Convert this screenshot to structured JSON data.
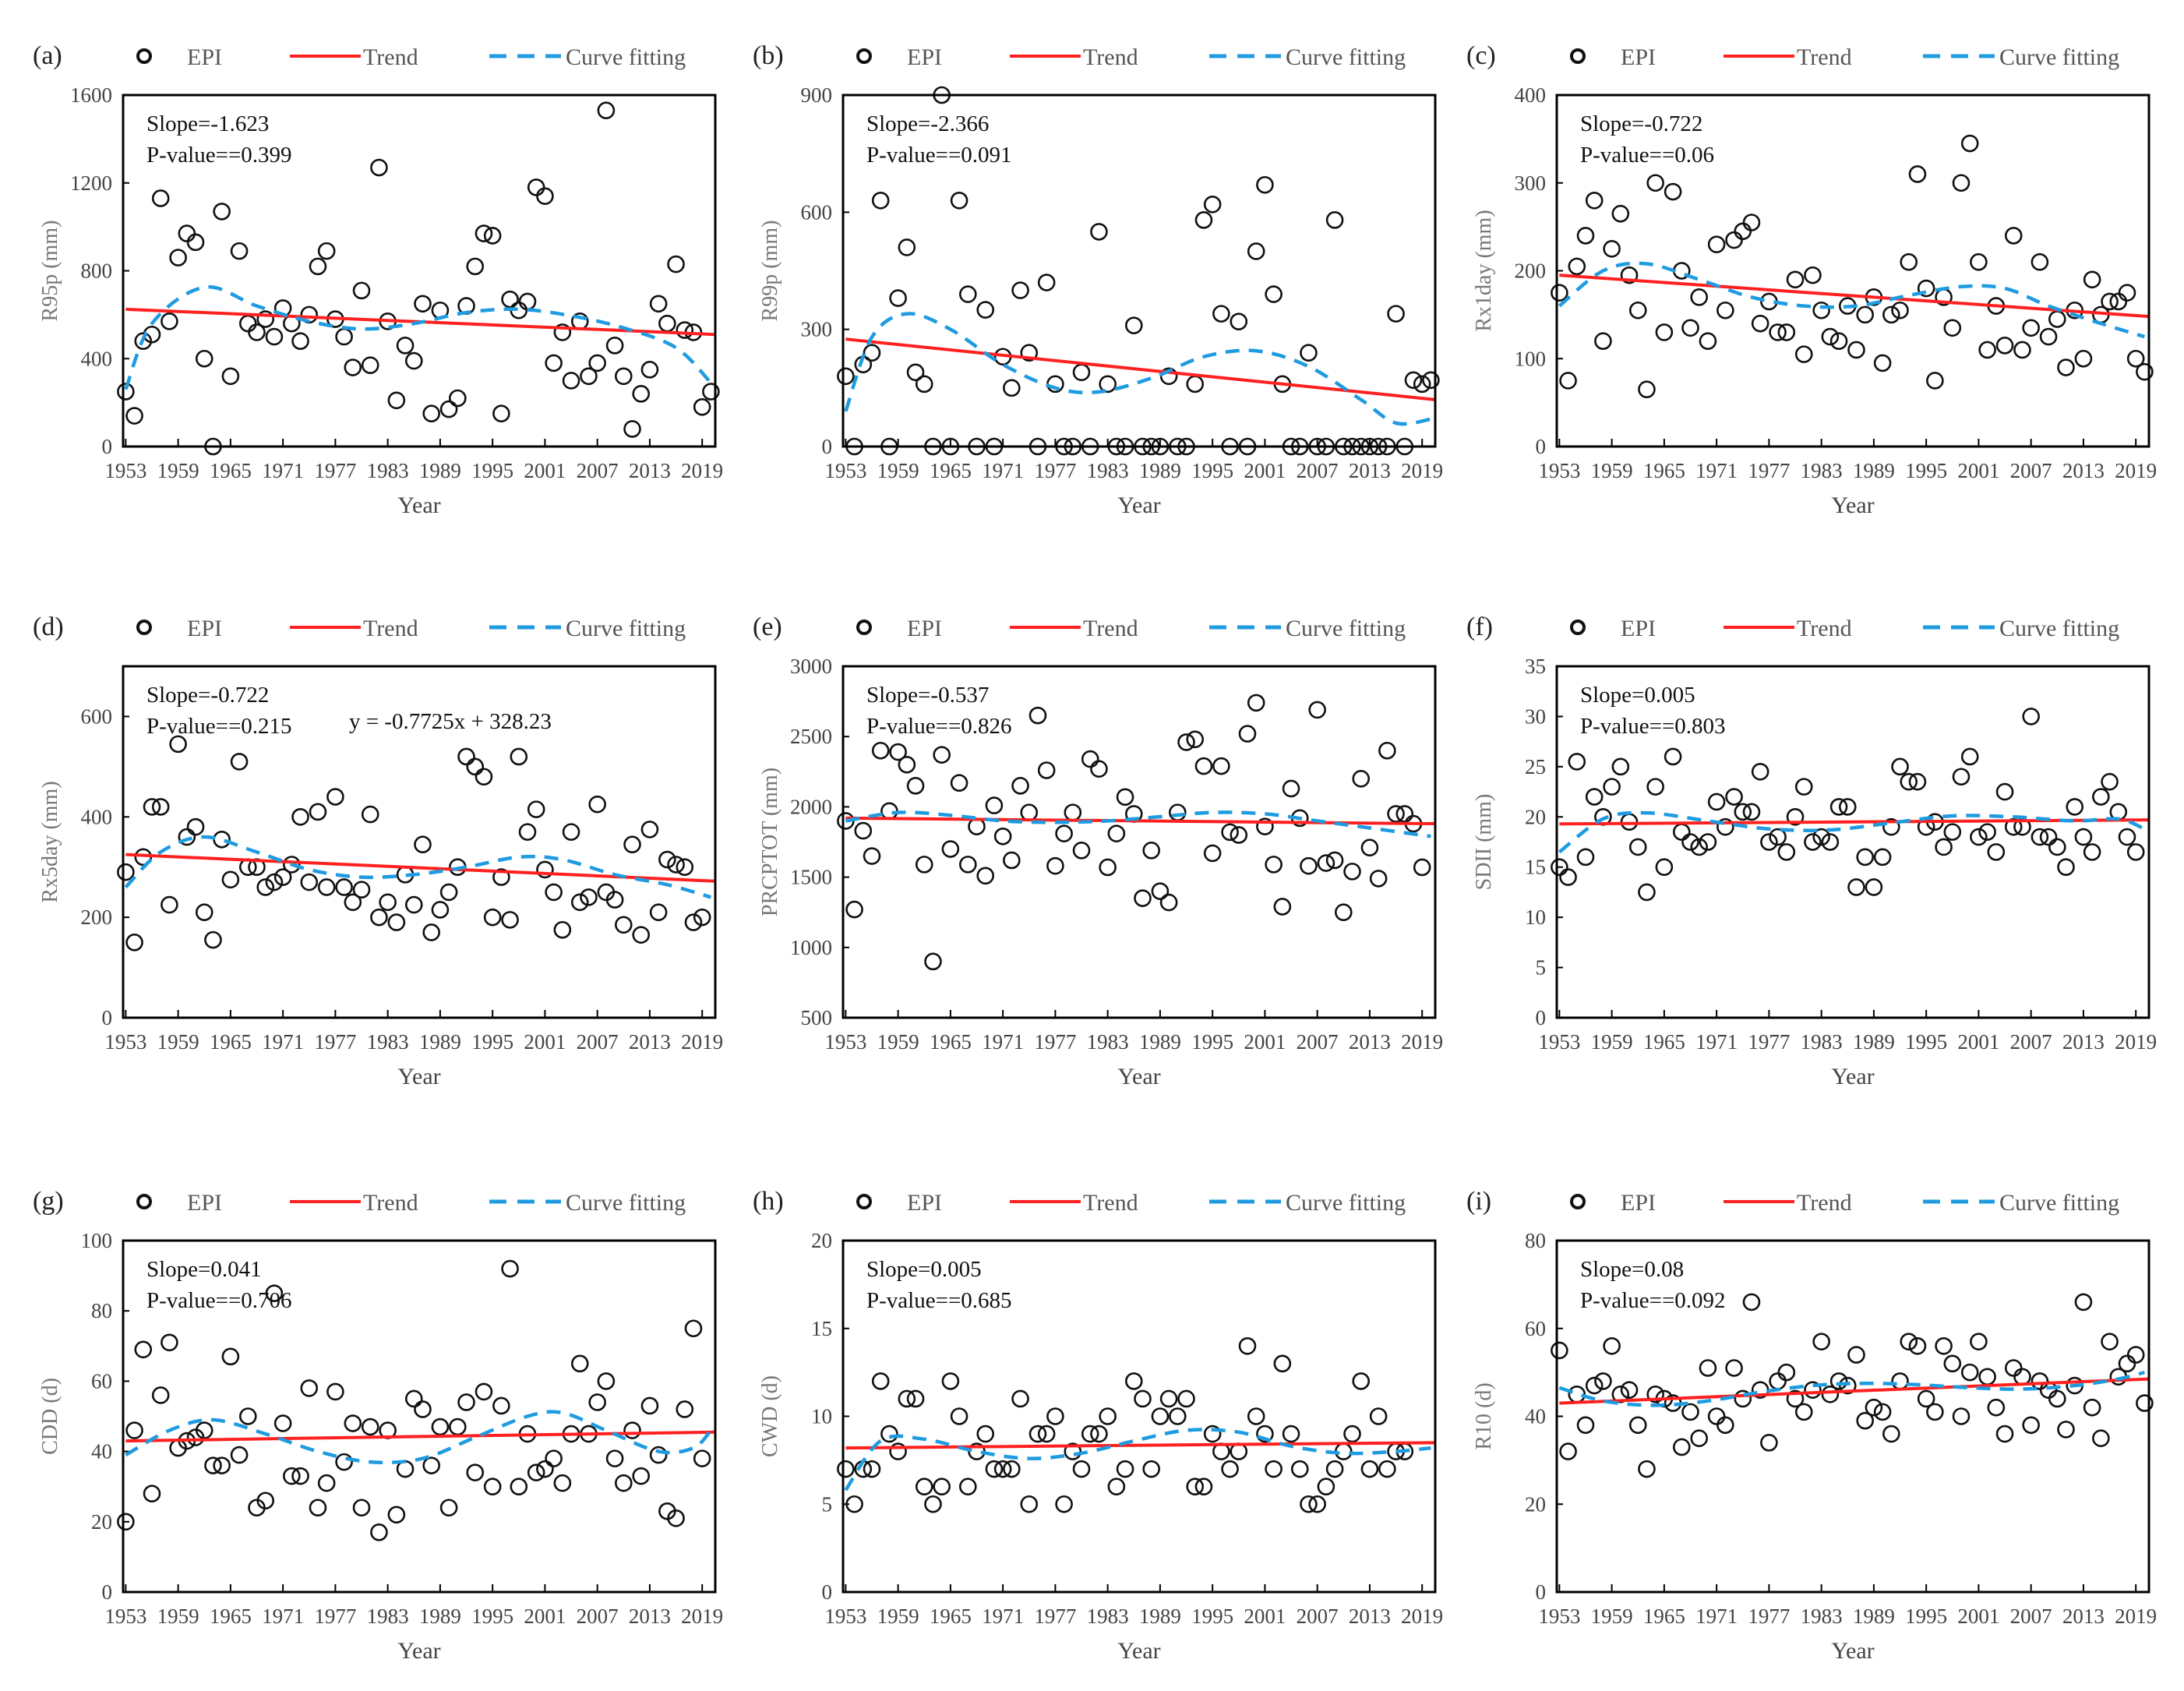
{
  "legend": {
    "points": "EPI",
    "trend": "Trend",
    "curve": "Curve fitting"
  },
  "colors": {
    "points": "#111111",
    "trend": "#ff2020",
    "curve": "#1f9be0",
    "frame": "#000000"
  },
  "chart_data": [
    {
      "type": "scatter",
      "letter": "(a)",
      "ylabel": "R95p (mm)",
      "xlabel": "Year",
      "ylim": [
        0,
        1600
      ],
      "yticks": [
        0,
        400,
        800,
        1200,
        1600
      ],
      "xticks": [
        1953,
        1959,
        1965,
        1971,
        1977,
        1983,
        1989,
        1995,
        2001,
        2007,
        2013,
        2019
      ],
      "x_start": 1953,
      "slope": "Slope=-1.623",
      "pvalue": "P-value==0.399",
      "equation": null,
      "values": [
        250,
        140,
        480,
        510,
        1130,
        570,
        860,
        970,
        930,
        400,
        0,
        1070,
        320,
        890,
        560,
        520,
        580,
        500,
        630,
        560,
        480,
        600,
        820,
        890,
        580,
        500,
        360,
        710,
        370,
        1270,
        570,
        210,
        460,
        390,
        650,
        150,
        620,
        170,
        220,
        640,
        820,
        970,
        960,
        150,
        670,
        620,
        660,
        1180,
        1140,
        380,
        520,
        300,
        570,
        320,
        380,
        1530,
        460,
        320,
        80,
        240,
        350,
        650,
        560,
        830,
        530,
        520,
        180,
        250
      ],
      "trend": [
        625,
        510
      ],
      "curve": [
        [
          1953,
          260
        ],
        [
          1956,
          560
        ],
        [
          1962,
          725
        ],
        [
          1968,
          640
        ],
        [
          1974,
          570
        ],
        [
          1980,
          535
        ],
        [
          1986,
          560
        ],
        [
          1992,
          610
        ],
        [
          1998,
          625
        ],
        [
          2004,
          595
        ],
        [
          2010,
          540
        ],
        [
          2016,
          450
        ],
        [
          2020,
          290
        ]
      ]
    },
    {
      "type": "scatter",
      "letter": "(b)",
      "ylabel": "R99p (mm)",
      "xlabel": "Year",
      "ylim": [
        0,
        900
      ],
      "yticks": [
        0,
        300,
        600,
        900
      ],
      "xticks": [
        1953,
        1959,
        1965,
        1971,
        1977,
        1983,
        1989,
        1995,
        2001,
        2007,
        2013,
        2019
      ],
      "x_start": 1953,
      "slope": "Slope=-2.366",
      "pvalue": "P-value==0.091",
      "equation": null,
      "values": [
        180,
        0,
        210,
        240,
        630,
        0,
        380,
        510,
        190,
        160,
        0,
        900,
        0,
        630,
        390,
        0,
        350,
        0,
        230,
        150,
        400,
        240,
        0,
        420,
        160,
        0,
        0,
        190,
        0,
        550,
        160,
        0,
        0,
        310,
        0,
        0,
        0,
        180,
        0,
        0,
        160,
        580,
        620,
        340,
        0,
        320,
        0,
        500,
        670,
        390,
        160,
        0,
        0,
        240,
        0,
        0,
        580,
        0,
        0,
        0,
        0,
        0,
        0,
        340,
        0,
        170,
        160,
        170
      ],
      "trend": [
        275,
        120
      ],
      "curve": [
        [
          1953,
          90
        ],
        [
          1956,
          280
        ],
        [
          1960,
          340
        ],
        [
          1965,
          300
        ],
        [
          1971,
          210
        ],
        [
          1977,
          150
        ],
        [
          1982,
          140
        ],
        [
          1988,
          175
        ],
        [
          1994,
          230
        ],
        [
          2000,
          245
        ],
        [
          2006,
          205
        ],
        [
          2012,
          120
        ],
        [
          2016,
          60
        ],
        [
          2020,
          70
        ]
      ]
    },
    {
      "type": "scatter",
      "letter": "(c)",
      "ylabel": "Rx1day (mm)",
      "xlabel": "Year",
      "ylim": [
        0,
        400
      ],
      "yticks": [
        0,
        100,
        200,
        300,
        400
      ],
      "xticks": [
        1953,
        1959,
        1965,
        1971,
        1977,
        1983,
        1989,
        1995,
        2001,
        2007,
        2013,
        2019
      ],
      "x_start": 1953,
      "slope": "Slope=-0.722",
      "pvalue": "P-value==0.06",
      "equation": null,
      "values": [
        175,
        75,
        205,
        240,
        280,
        120,
        225,
        265,
        195,
        155,
        65,
        300,
        130,
        290,
        200,
        135,
        170,
        120,
        230,
        155,
        235,
        245,
        255,
        140,
        165,
        130,
        130,
        190,
        105,
        195,
        155,
        125,
        120,
        160,
        110,
        150,
        170,
        95,
        150,
        155,
        210,
        310,
        180,
        75,
        170,
        135,
        300,
        345,
        210,
        110,
        160,
        115,
        240,
        110,
        135,
        210,
        125,
        145,
        90,
        155,
        100,
        190,
        150,
        165,
        165,
        175,
        100,
        85
      ],
      "trend": [
        195,
        148
      ],
      "curve": [
        [
          1953,
          160
        ],
        [
          1958,
          200
        ],
        [
          1963,
          208
        ],
        [
          1969,
          190
        ],
        [
          1975,
          170
        ],
        [
          1981,
          160
        ],
        [
          1987,
          160
        ],
        [
          1993,
          172
        ],
        [
          1999,
          182
        ],
        [
          2004,
          180
        ],
        [
          2009,
          160
        ],
        [
          2015,
          140
        ],
        [
          2020,
          125
        ]
      ]
    },
    {
      "type": "scatter",
      "letter": "(d)",
      "ylabel": "Rx5day (mm)",
      "xlabel": "Year",
      "ylim": [
        0,
        700
      ],
      "yticks": [
        0,
        200,
        400,
        600
      ],
      "xticks": [
        1953,
        1959,
        1965,
        1971,
        1977,
        1983,
        1989,
        1995,
        2001,
        2007,
        2013,
        2019
      ],
      "x_start": 1953,
      "slope": "Slope=-0.722",
      "pvalue": "P-value==0.215",
      "equation": "y = -0.7725x + 328.23",
      "values": [
        290,
        150,
        320,
        420,
        420,
        225,
        545,
        360,
        380,
        210,
        155,
        355,
        275,
        510,
        300,
        300,
        260,
        270,
        280,
        305,
        400,
        270,
        410,
        260,
        440,
        260,
        230,
        255,
        405,
        200,
        230,
        190,
        285,
        225,
        345,
        170,
        215,
        250,
        300,
        520,
        500,
        480,
        200,
        280,
        195,
        520,
        370,
        415,
        295,
        250,
        175,
        370,
        230,
        240,
        425,
        250,
        235,
        185,
        345,
        165,
        375,
        210,
        315,
        305,
        300,
        190,
        200
      ],
      "trend": [
        325,
        272
      ],
      "curve": [
        [
          1953,
          260
        ],
        [
          1957,
          330
        ],
        [
          1962,
          360
        ],
        [
          1968,
          330
        ],
        [
          1974,
          295
        ],
        [
          1980,
          280
        ],
        [
          1986,
          285
        ],
        [
          1992,
          300
        ],
        [
          1998,
          320
        ],
        [
          2003,
          315
        ],
        [
          2009,
          285
        ],
        [
          2015,
          265
        ],
        [
          2020,
          240
        ]
      ]
    },
    {
      "type": "scatter",
      "letter": "(e)",
      "ylabel": "PRCPTOT (mm)",
      "xlabel": "Year",
      "ylim": [
        500,
        3000
      ],
      "yticks": [
        500,
        1000,
        1500,
        2000,
        2500,
        3000
      ],
      "xticks": [
        1953,
        1959,
        1965,
        1971,
        1977,
        1983,
        1989,
        1995,
        2001,
        2007,
        2013,
        2019
      ],
      "x_start": 1953,
      "slope": "Slope=-0.537",
      "pvalue": "P-value==0.826",
      "equation": null,
      "values": [
        1900,
        1270,
        1830,
        1650,
        2400,
        1970,
        2390,
        2300,
        2150,
        1590,
        900,
        2370,
        1700,
        2170,
        1590,
        1860,
        1510,
        2010,
        1790,
        1620,
        2150,
        1960,
        2650,
        2260,
        1580,
        1810,
        1960,
        1690,
        2340,
        2270,
        1570,
        1810,
        2070,
        1950,
        1350,
        1690,
        1400,
        1320,
        1960,
        2460,
        2480,
        2290,
        1670,
        2290,
        1820,
        1800,
        2520,
        2740,
        1860,
        1590,
        1290,
        2130,
        1920,
        1580,
        2690,
        1600,
        1620,
        1250,
        1540,
        2200,
        1710,
        1490,
        2400,
        1950,
        1950,
        1880,
        1570
      ],
      "trend": [
        1920,
        1880
      ],
      "curve": [
        [
          1953,
          1900
        ],
        [
          1959,
          1960
        ],
        [
          1965,
          1940
        ],
        [
          1971,
          1900
        ],
        [
          1977,
          1890
        ],
        [
          1983,
          1900
        ],
        [
          1989,
          1930
        ],
        [
          1995,
          1960
        ],
        [
          2001,
          1950
        ],
        [
          2007,
          1900
        ],
        [
          2013,
          1850
        ],
        [
          2020,
          1790
        ]
      ]
    },
    {
      "type": "scatter",
      "letter": "(f)",
      "ylabel": "SDII (mm)",
      "xlabel": "Year",
      "ylim": [
        0,
        35
      ],
      "yticks": [
        0,
        5,
        10,
        15,
        20,
        25,
        30,
        35
      ],
      "xticks": [
        1953,
        1959,
        1965,
        1971,
        1977,
        1983,
        1989,
        1995,
        2001,
        2007,
        2013,
        2019
      ],
      "x_start": 1953,
      "slope": "Slope=0.005",
      "pvalue": "P-value==0.803",
      "equation": null,
      "values": [
        15,
        14,
        25.5,
        16,
        22,
        20,
        23,
        25,
        19.5,
        17,
        12.5,
        23,
        15,
        26,
        18.5,
        17.5,
        17,
        17.5,
        21.5,
        19,
        22,
        20.5,
        20.5,
        24.5,
        17.5,
        18,
        16.5,
        20,
        23,
        17.5,
        18,
        17.5,
        21,
        21,
        13,
        16,
        13,
        16,
        19,
        25,
        23.5,
        23.5,
        19,
        19.5,
        17,
        18.5,
        24,
        26,
        18,
        18.5,
        16.5,
        22.5,
        19,
        19,
        30,
        18,
        18,
        17,
        15,
        21,
        18,
        16.5,
        22,
        23.5,
        20.5,
        18,
        16.5
      ],
      "trend": [
        19.3,
        19.7
      ],
      "curve": [
        [
          1953,
          16.5
        ],
        [
          1958,
          19.8
        ],
        [
          1963,
          20.4
        ],
        [
          1970,
          19.6
        ],
        [
          1977,
          18.8
        ],
        [
          1984,
          18.7
        ],
        [
          1991,
          19.4
        ],
        [
          1998,
          20.1
        ],
        [
          2005,
          20.0
        ],
        [
          2012,
          19.6
        ],
        [
          2017,
          19.8
        ],
        [
          2020,
          18.8
        ]
      ]
    },
    {
      "type": "scatter",
      "letter": "(g)",
      "ylabel": "CDD (d)",
      "xlabel": "Year",
      "ylim": [
        0,
        100
      ],
      "yticks": [
        0,
        20,
        40,
        60,
        80,
        100
      ],
      "xticks": [
        1953,
        1959,
        1965,
        1971,
        1977,
        1983,
        1989,
        1995,
        2001,
        2007,
        2013,
        2019
      ],
      "x_start": 1953,
      "slope": "Slope=0.041",
      "pvalue": "P-value==0.706",
      "equation": null,
      "values": [
        20,
        46,
        69,
        28,
        56,
        71,
        41,
        43,
        44,
        46,
        36,
        36,
        67,
        39,
        50,
        24,
        26,
        85,
        48,
        33,
        33,
        58,
        24,
        31,
        57,
        37,
        48,
        24,
        47,
        17,
        46,
        22,
        35,
        55,
        52,
        36,
        47,
        24,
        47,
        54,
        34,
        57,
        30,
        53,
        92,
        30,
        45,
        34,
        35,
        38,
        31,
        45,
        65,
        45,
        54,
        60,
        38,
        31,
        46,
        33,
        53,
        39,
        23,
        21,
        52,
        75,
        38
      ],
      "trend": [
        43,
        45.5
      ],
      "curve": [
        [
          1953,
          39
        ],
        [
          1958,
          46
        ],
        [
          1963,
          49
        ],
        [
          1969,
          45
        ],
        [
          1975,
          40
        ],
        [
          1981,
          37
        ],
        [
          1987,
          38
        ],
        [
          1993,
          44
        ],
        [
          1999,
          50
        ],
        [
          2003,
          51
        ],
        [
          2008,
          46
        ],
        [
          2014,
          40
        ],
        [
          2018,
          41
        ],
        [
          2020,
          46
        ]
      ]
    },
    {
      "type": "scatter",
      "letter": "(h)",
      "ylabel": "CWD (d)",
      "xlabel": "Year",
      "ylim": [
        0,
        20
      ],
      "yticks": [
        0,
        5,
        10,
        15,
        20
      ],
      "xticks": [
        1953,
        1959,
        1965,
        1971,
        1977,
        1983,
        1989,
        1995,
        2001,
        2007,
        2013,
        2019
      ],
      "x_start": 1953,
      "slope": "Slope=0.005",
      "pvalue": "P-value==0.685",
      "equation": null,
      "values": [
        7,
        5,
        7,
        7,
        12,
        9,
        8,
        11,
        11,
        6,
        5,
        6,
        12,
        10,
        6,
        8,
        9,
        7,
        7,
        7,
        11,
        5,
        9,
        9,
        10,
        5,
        8,
        7,
        9,
        9,
        10,
        6,
        7,
        12,
        11,
        7,
        10,
        11,
        10,
        11,
        6,
        6,
        9,
        8,
        7,
        8,
        14,
        10,
        9,
        7,
        13,
        9,
        7,
        5,
        5,
        6,
        7,
        8,
        9,
        12,
        7,
        10,
        7,
        8,
        8
      ],
      "trend": [
        8.2,
        8.5
      ],
      "curve": [
        [
          1953,
          5.8
        ],
        [
          1957,
          8.6
        ],
        [
          1962,
          8.7
        ],
        [
          1968,
          8.0
        ],
        [
          1974,
          7.6
        ],
        [
          1980,
          7.9
        ],
        [
          1986,
          8.6
        ],
        [
          1992,
          9.2
        ],
        [
          1998,
          9.1
        ],
        [
          2004,
          8.3
        ],
        [
          2010,
          7.9
        ],
        [
          2016,
          8.0
        ],
        [
          2020,
          8.2
        ]
      ]
    },
    {
      "type": "scatter",
      "letter": "(i)",
      "ylabel": "R10 (d)",
      "xlabel": "Year",
      "ylim": [
        0,
        80
      ],
      "yticks": [
        0,
        20,
        40,
        60,
        80
      ],
      "xticks": [
        1953,
        1959,
        1965,
        1971,
        1977,
        1983,
        1989,
        1995,
        2001,
        2007,
        2013,
        2019
      ],
      "x_start": 1953,
      "slope": "Slope=0.08",
      "pvalue": "P-value==0.092",
      "equation": null,
      "values": [
        55,
        32,
        45,
        38,
        47,
        48,
        56,
        45,
        46,
        38,
        28,
        45,
        44,
        43,
        33,
        41,
        35,
        51,
        40,
        38,
        51,
        44,
        66,
        46,
        34,
        48,
        50,
        44,
        41,
        46,
        57,
        45,
        48,
        47,
        54,
        39,
        42,
        41,
        36,
        48,
        57,
        56,
        44,
        41,
        56,
        52,
        40,
        50,
        57,
        49,
        42,
        36,
        51,
        49,
        38,
        48,
        46,
        44,
        37,
        47,
        66,
        42,
        35,
        57,
        49,
        52,
        54,
        43
      ],
      "trend": [
        43,
        48.5
      ],
      "curve": [
        [
          1953,
          46.5
        ],
        [
          1958,
          43.5
        ],
        [
          1964,
          42.5
        ],
        [
          1970,
          43.5
        ],
        [
          1976,
          45.5
        ],
        [
          1982,
          47
        ],
        [
          1988,
          47.5
        ],
        [
          1994,
          47.2
        ],
        [
          2000,
          46.5
        ],
        [
          2006,
          46.2
        ],
        [
          2012,
          47
        ],
        [
          2017,
          48.5
        ],
        [
          2020,
          50
        ]
      ]
    }
  ]
}
